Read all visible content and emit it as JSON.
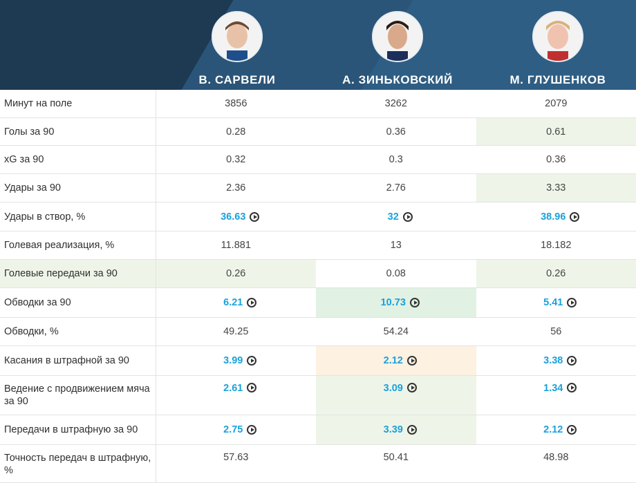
{
  "players": [
    {
      "name": "В. САРВЕЛИ",
      "avatar": "player-photo"
    },
    {
      "name": "А. ЗИНЬКОВСКИЙ",
      "avatar": "player-photo"
    },
    {
      "name": "М. ГЛУШЕНКОВ",
      "avatar": "player-photo"
    }
  ],
  "rows": [
    {
      "label": "Минут на поле",
      "values": [
        "3856",
        "3262",
        "2079"
      ]
    },
    {
      "label": "Голы за 90",
      "values": [
        "0.28",
        "0.36",
        "0.61"
      ]
    },
    {
      "label": "xG за 90",
      "values": [
        "0.32",
        "0.3",
        "0.36"
      ]
    },
    {
      "label": "Удары за 90",
      "values": [
        "2.36",
        "2.76",
        "3.33"
      ]
    },
    {
      "label": "Удары в створ, %",
      "values": [
        "36.63",
        "32",
        "38.96"
      ]
    },
    {
      "label": "Голевая реализация, %",
      "values": [
        "11.881",
        "13",
        "18.182"
      ]
    },
    {
      "label": "Голевые передачи за 90",
      "values": [
        "0.26",
        "0.08",
        "0.26"
      ]
    },
    {
      "label": "Обводки за 90",
      "values": [
        "6.21",
        "10.73",
        "5.41"
      ]
    },
    {
      "label": "Обводки, %",
      "values": [
        "49.25",
        "54.24",
        "56"
      ]
    },
    {
      "label": "Касания в штрафной за 90",
      "values": [
        "3.99",
        "2.12",
        "3.38"
      ]
    },
    {
      "label": "Ведение с продвижением мяча за 90",
      "values": [
        "2.61",
        "3.09",
        "1.34"
      ]
    },
    {
      "label": "Передачи в штрафную за 90",
      "values": [
        "2.75",
        "3.39",
        "2.12"
      ]
    },
    {
      "label": "Точность передач в штрафную, %",
      "values": [
        "57.63",
        "50.41",
        "48.98"
      ]
    }
  ],
  "colors": {
    "header": "#1d3a52",
    "link": "#1aa1dc",
    "highlight_green": "#eef5e8",
    "highlight_green_strong": "#e1f1e3",
    "highlight_orange": "#fdf1e1"
  },
  "icons": {
    "play": "play-circle-icon"
  }
}
